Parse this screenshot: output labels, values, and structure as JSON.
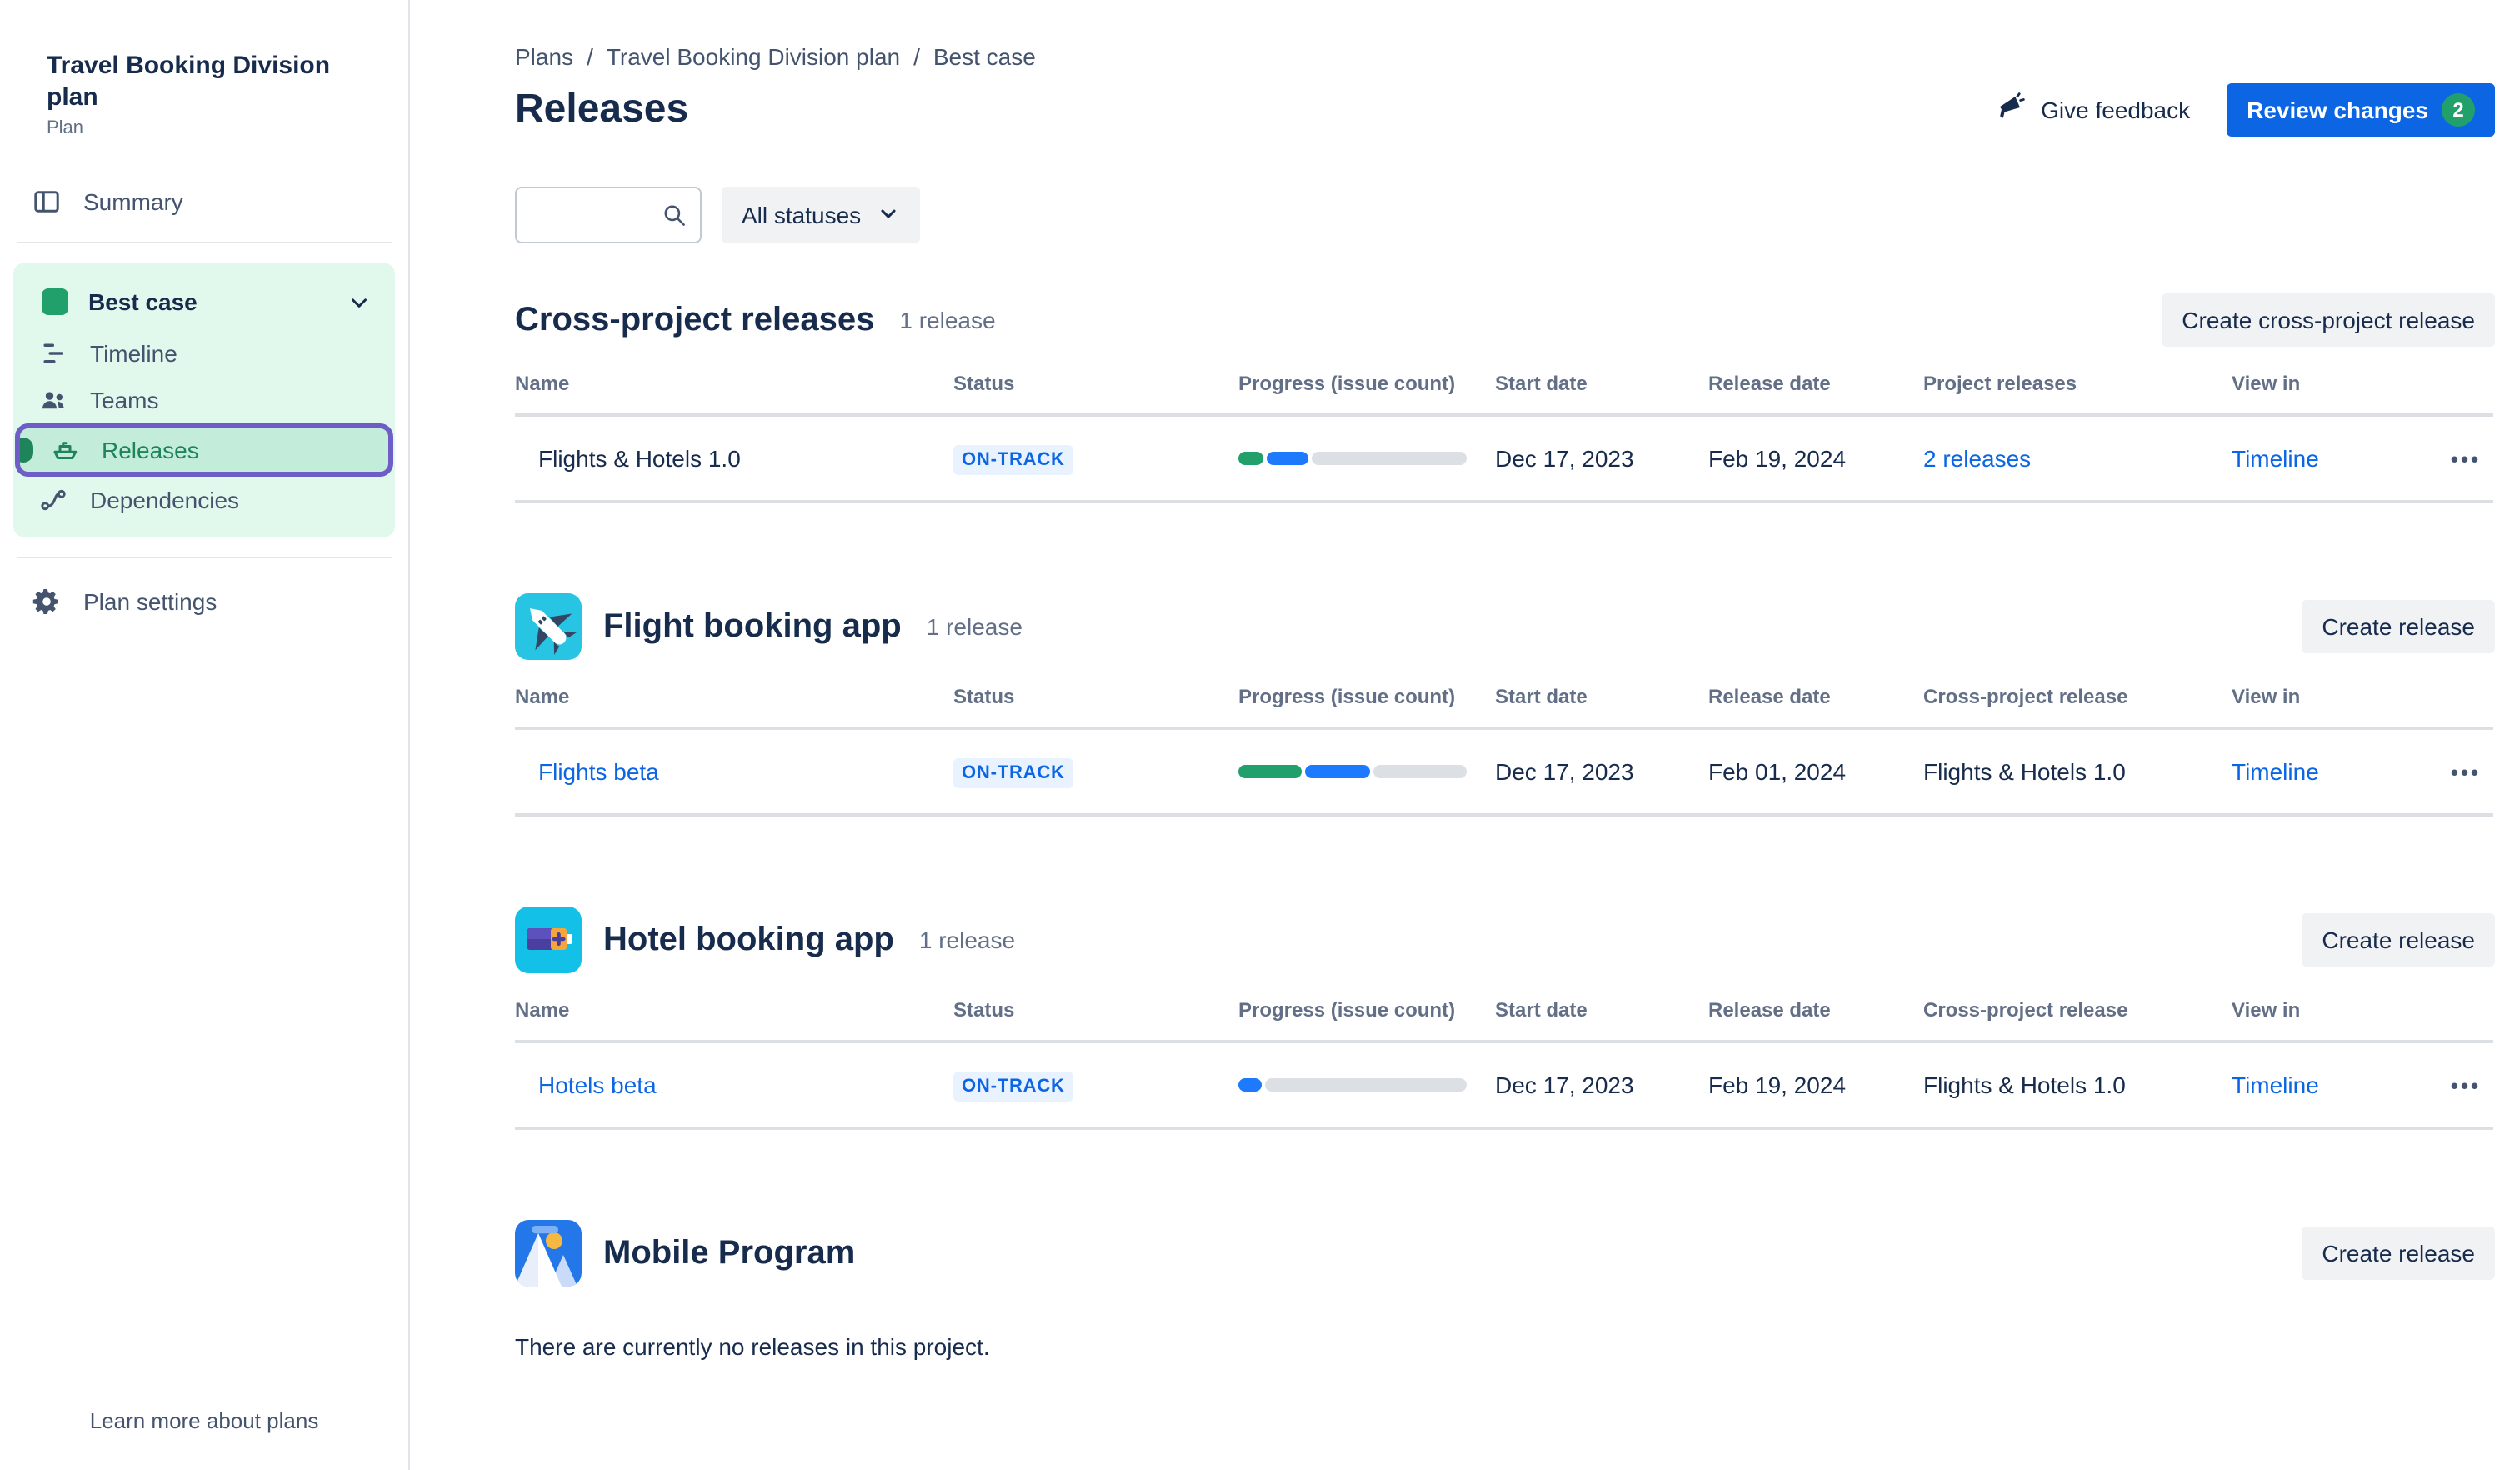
{
  "colors": {
    "link_blue": "#0C66E4",
    "primary_button_blue": "#0C66E4",
    "review_badge_green": "#22A06B",
    "progress_done_green": "#22A06B",
    "progress_in_progress_blue": "#1D7AFC",
    "progress_track_gray": "#DCDFE4",
    "status_badge_bg": "#E9F2FF",
    "status_badge_text": "#0C66E4",
    "sidebar_scenario_bg": "#E1F9ED",
    "sidebar_selected_bg": "#C3EDDA",
    "sidebar_selected_border": "#6E5DC6",
    "sidebar_selected_text": "#1F845A",
    "scenario_swatch": "#22A06B"
  },
  "sidebar": {
    "plan_title": "Travel Booking Division plan",
    "plan_type": "Plan",
    "summary_label": "Summary",
    "scenario_label": "Best case",
    "nav": {
      "timeline": "Timeline",
      "teams": "Teams",
      "releases": "Releases",
      "dependencies": "Dependencies"
    },
    "plan_settings_label": "Plan settings",
    "learn_more_label": "Learn more about plans"
  },
  "header": {
    "breadcrumbs": [
      "Plans",
      "Travel Booking Division plan",
      "Best case"
    ],
    "breadcrumb_separator": "/",
    "title": "Releases",
    "give_feedback_label": "Give feedback",
    "review_changes_label": "Review changes",
    "review_changes_count": "2"
  },
  "filters": {
    "search_placeholder": "",
    "status_filter_label": "All statuses"
  },
  "cross_section": {
    "title": "Cross-project releases",
    "count": "1 release",
    "create_button": "Create cross-project release",
    "columns": [
      "Name",
      "Status",
      "Progress (issue count)",
      "Start date",
      "Release date",
      "Project releases",
      "View in"
    ],
    "row": {
      "name": "Flights & Hotels 1.0",
      "status": "ON-TRACK",
      "progress": {
        "done_pct": 11,
        "in_progress_pct": 18
      },
      "start_date": "Dec 17, 2023",
      "release_date": "Feb 19, 2024",
      "project_releases": "2 releases",
      "view_in": "Timeline",
      "menu": "•••"
    }
  },
  "flight_section": {
    "title": "Flight booking app",
    "count": "1 release",
    "create_button": "Create release",
    "columns": [
      "Name",
      "Status",
      "Progress (issue count)",
      "Start date",
      "Release date",
      "Cross-project release",
      "View in"
    ],
    "row": {
      "name": "Flights beta",
      "status": "ON-TRACK",
      "progress": {
        "done_pct": 28,
        "in_progress_pct": 28
      },
      "start_date": "Dec 17, 2023",
      "release_date": "Feb 01, 2024",
      "cross_project_release": "Flights & Hotels 1.0",
      "view_in": "Timeline",
      "menu": "•••"
    }
  },
  "hotel_section": {
    "title": "Hotel booking app",
    "count": "1 release",
    "create_button": "Create release",
    "columns": [
      "Name",
      "Status",
      "Progress (issue count)",
      "Start date",
      "Release date",
      "Cross-project release",
      "View in"
    ],
    "row": {
      "name": "Hotels beta",
      "status": "ON-TRACK",
      "progress": {
        "done_pct": 0,
        "in_progress_pct": 10
      },
      "start_date": "Dec 17, 2023",
      "release_date": "Feb 19, 2024",
      "cross_project_release": "Flights & Hotels 1.0",
      "view_in": "Timeline",
      "menu": "•••"
    }
  },
  "mobile_section": {
    "title": "Mobile Program",
    "create_button": "Create release",
    "empty_text": "There are currently no releases in this project."
  }
}
